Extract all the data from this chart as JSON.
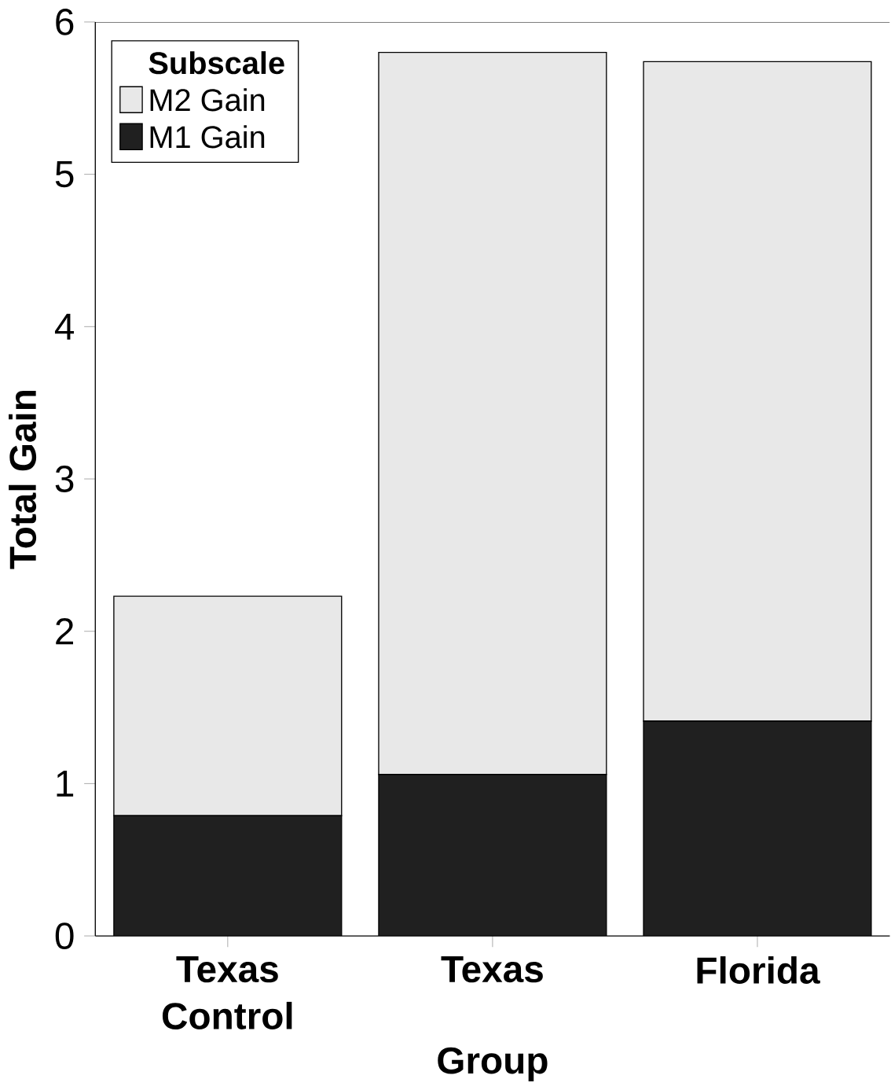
{
  "chart_data": {
    "type": "bar",
    "stacked": true,
    "xlabel": "Group",
    "ylabel": "Total Gain",
    "legend_title": "Subscale",
    "legend": "top left",
    "categories": [
      "Texas Control",
      "Texas",
      "Florida"
    ],
    "series": [
      {
        "name": "M1 Gain",
        "color": "#202020",
        "values": [
          0.79,
          1.06,
          1.41
        ]
      },
      {
        "name": "M2 Gain",
        "color": "#e8e8e8",
        "values": [
          1.44,
          4.74,
          4.33
        ]
      }
    ],
    "ylim": [
      0,
      6
    ],
    "yticks": [
      0,
      1,
      2,
      3,
      4,
      5,
      6
    ]
  }
}
